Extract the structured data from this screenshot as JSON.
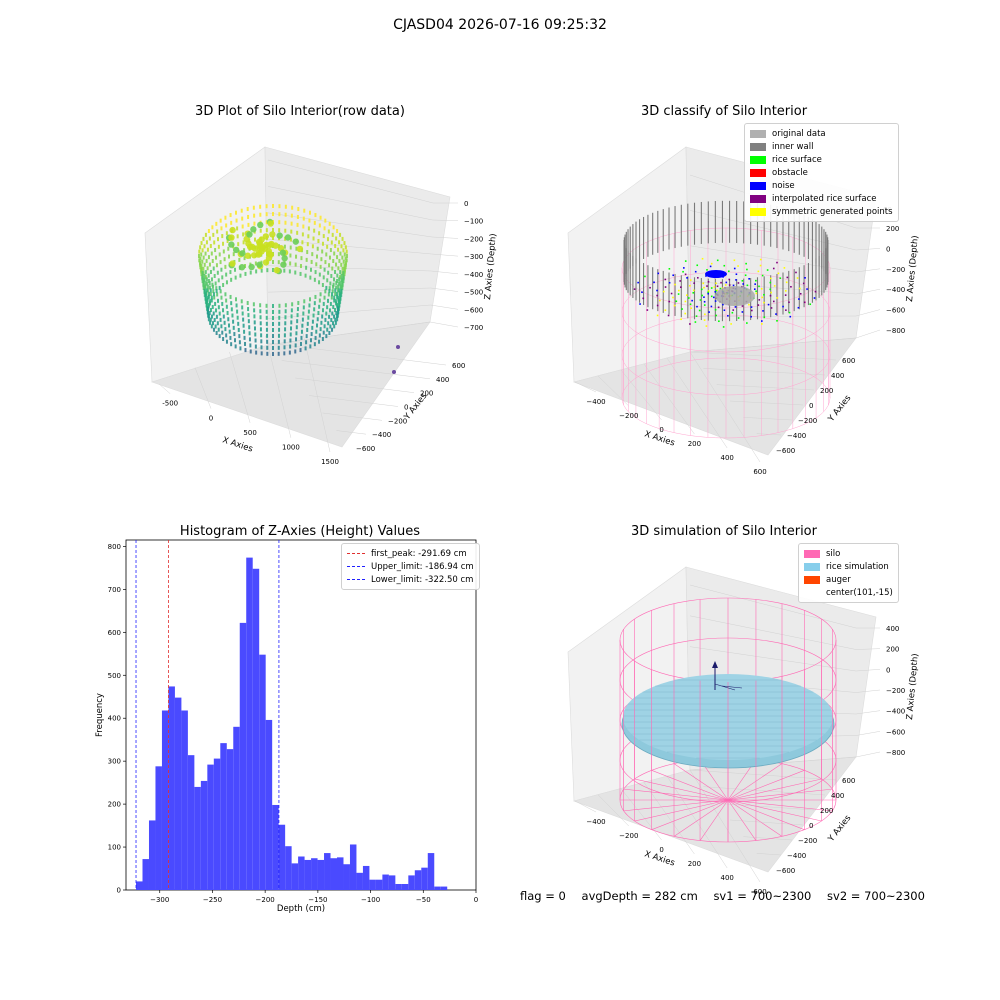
{
  "figure": {
    "title": "CJASD04 2026-07-16 09:25:32",
    "footer": {
      "flag": "flag = 0",
      "avg": "avgDepth = 282 cm",
      "sv1": "sv1 = 700~2300",
      "sv2": "sv2 = 700~2300"
    }
  },
  "chart_data": [
    {
      "type": "scatter",
      "title": "3D Plot of Silo Interior(row data)",
      "xlabel": "X Axies",
      "ylabel": "Y Axies",
      "zlabel": "Z Axies (Depth)",
      "x_ticks": [
        "-500",
        "0",
        "500",
        "1000",
        "1500"
      ],
      "y_ticks": [
        "600",
        "400",
        "200",
        "0",
        "−200",
        "−400",
        "−600"
      ],
      "z_ticks": [
        "0",
        "−100",
        "−200",
        "−300",
        "−400",
        "−500",
        "−600",
        "−700"
      ],
      "colormap": "viridis"
    },
    {
      "type": "scatter",
      "title": "3D classify of Silo Interior",
      "xlabel": "X Axies",
      "ylabel": "Y Axies",
      "zlabel": "Z Axies (Depth)",
      "x_ticks": [
        "−400",
        "−200",
        "0",
        "200",
        "400",
        "600"
      ],
      "y_ticks": [
        "600",
        "400",
        "200",
        "0",
        "−200",
        "−400",
        "−600"
      ],
      "z_ticks": [
        "200",
        "0",
        "−200",
        "−400",
        "−600",
        "−800"
      ],
      "z_top_partial": "00",
      "legend": [
        {
          "label": "original data",
          "color": "#b0b0b0"
        },
        {
          "label": "inner wall",
          "color": "#808080"
        },
        {
          "label": "rice surface",
          "color": "#00ff00"
        },
        {
          "label": "obstacle",
          "color": "#ff0000"
        },
        {
          "label": "noise",
          "color": "#0000ff"
        },
        {
          "label": "interpolated rice surface",
          "color": "#800080"
        },
        {
          "label": "symmetric generated points",
          "color": "#ffff00"
        }
      ]
    },
    {
      "type": "bar",
      "title": "Histogram of Z-Axies (Height) Values",
      "xlabel": "Depth (cm)",
      "ylabel": "Frequency",
      "xlim": [
        -332,
        0
      ],
      "ylim": [
        0,
        815
      ],
      "x_ticks": [
        -300,
        -250,
        -200,
        -150,
        -100,
        -50,
        0
      ],
      "y_ticks": [
        0,
        100,
        200,
        300,
        400,
        500,
        600,
        700,
        800
      ],
      "bin_start": -322.5,
      "bin_width": 6.15,
      "values": [
        20,
        72,
        162,
        288,
        418,
        474,
        448,
        418,
        314,
        240,
        254,
        292,
        306,
        342,
        328,
        380,
        622,
        774,
        748,
        548,
        396,
        198,
        152,
        102,
        62,
        78,
        70,
        74,
        70,
        86,
        74,
        76,
        60,
        106,
        40,
        56,
        24,
        24,
        36,
        34,
        14,
        14,
        34,
        46,
        52,
        86,
        8,
        8
      ],
      "bar_color": "#4a4aff",
      "vlines": [
        {
          "name": "first_peak: -291.69 cm",
          "x": -291.69,
          "color": "#e03030"
        },
        {
          "name": "Upper_limit: -186.94 cm",
          "x": -186.94,
          "color": "#2020ff"
        },
        {
          "name": "Lower_limit: -322.50 cm",
          "x": -322.5,
          "color": "#2020ff"
        }
      ]
    },
    {
      "type": "scatter",
      "title": "3D simulation of Silo Interior",
      "xlabel": "X Axies",
      "ylabel": "Y Axies",
      "zlabel": "Z Axies (Depth)",
      "x_ticks": [
        "−400",
        "−200",
        "0",
        "200",
        "400",
        "600"
      ],
      "y_ticks": [
        "600",
        "400",
        "200",
        "0",
        "−200",
        "−400",
        "−600"
      ],
      "z_ticks": [
        "400",
        "200",
        "0",
        "−200",
        "−400",
        "−600",
        "−800"
      ],
      "legend": [
        {
          "label": "silo",
          "color": "#ff69b4"
        },
        {
          "label": "rice simulation",
          "color": "#87ceeb"
        },
        {
          "label": "auger",
          "color": "#ff4500"
        },
        {
          "label": "center(101,-15)",
          "color": ""
        }
      ]
    }
  ]
}
